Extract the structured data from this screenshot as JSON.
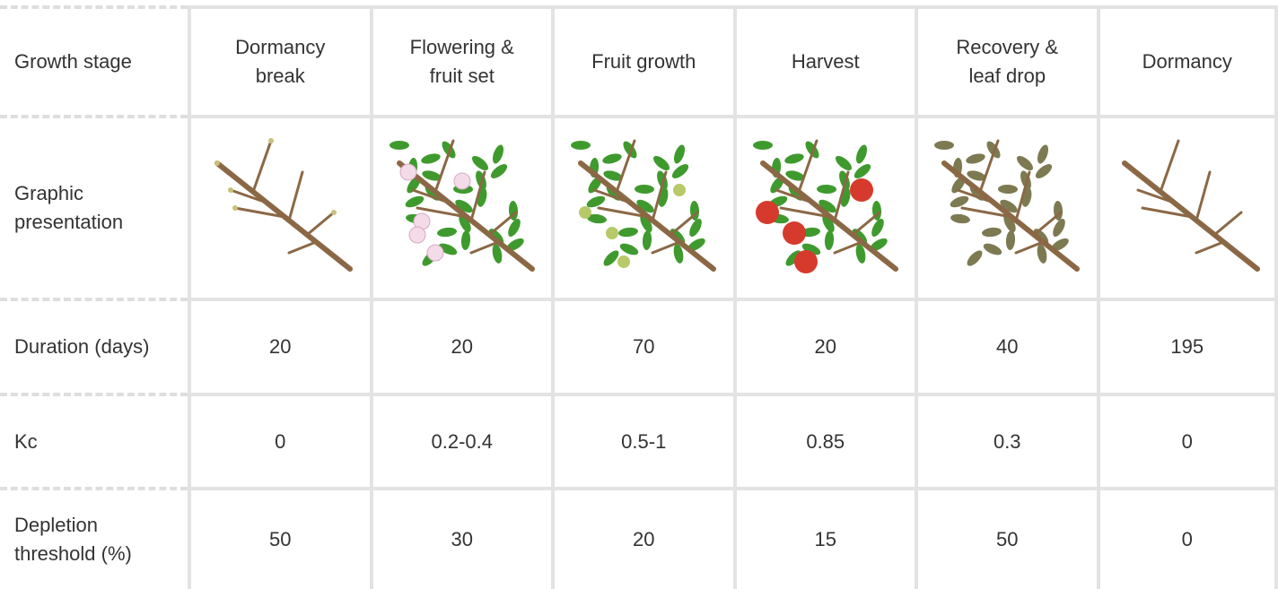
{
  "table": {
    "header": [
      "Growth stage",
      "Dormancy break",
      "Flowering & fruit set",
      "Fruit growth",
      "Harvest",
      "Recovery & leaf drop",
      "Dormancy"
    ],
    "rows": [
      [
        "Graphic presentation"
      ],
      [
        "Duration (days)",
        20,
        20,
        70,
        20,
        40,
        195
      ],
      [
        "Kc",
        0,
        "0.2-0.4",
        "0.5-1",
        0.85,
        0.3,
        0
      ],
      [
        "Depletion threshold (%)",
        50,
        30,
        20,
        15,
        50,
        0
      ]
    ]
  }
}
